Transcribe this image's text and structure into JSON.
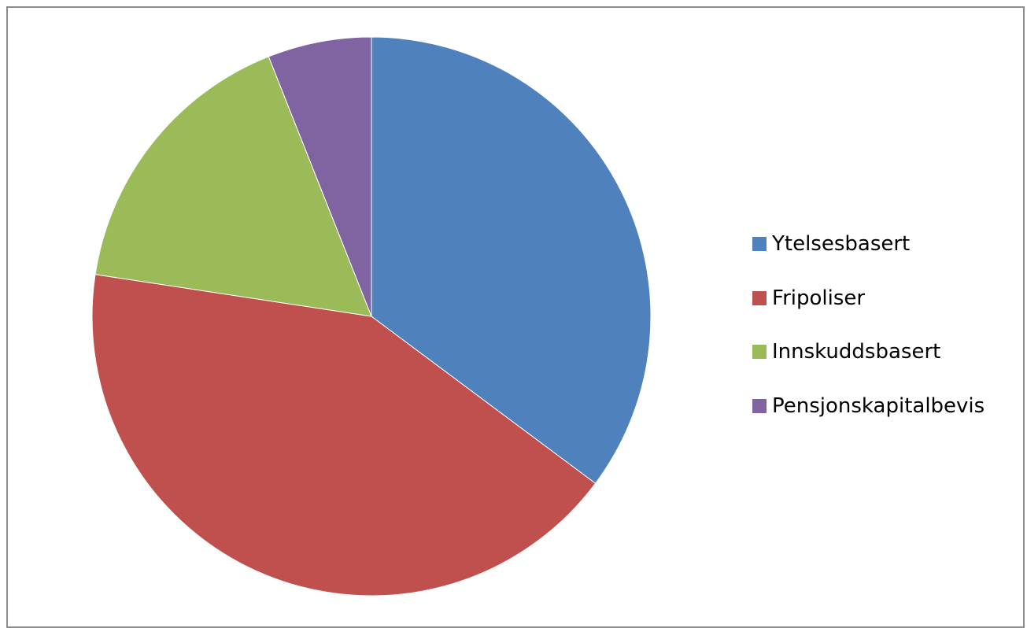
{
  "chart_data": {
    "type": "pie",
    "title": "",
    "start": "12 o'clock",
    "direction": "clockwise",
    "legend_position": "right",
    "categories": [
      "Ytelsesbasert",
      "Fripoliser",
      "Innskuddsbasert",
      "Pensjonskapitalbevis"
    ],
    "values": [
      35.2,
      42.2,
      16.6,
      6.0
    ],
    "colors": [
      "#4F81BD",
      "#C0504D",
      "#9BBB59",
      "#8064A2"
    ]
  }
}
